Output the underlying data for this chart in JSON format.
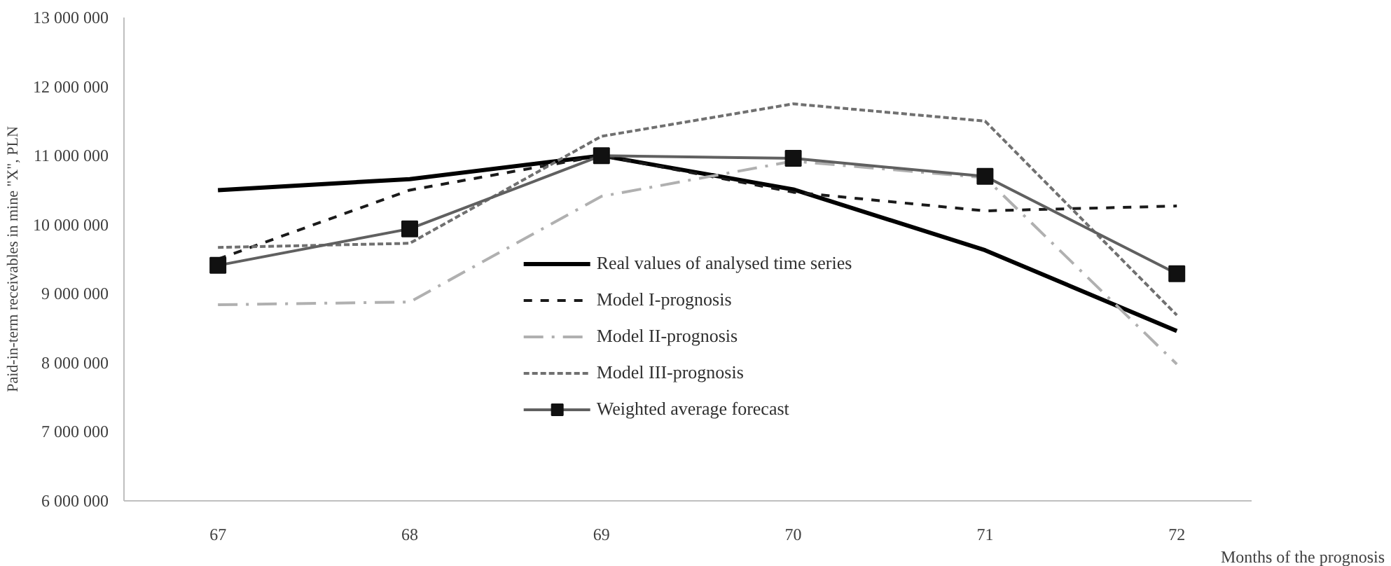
{
  "chart_data": {
    "type": "line",
    "xlabel": "Months of the prognosis",
    "ylabel": "Paid-in-term receivables in mine \"X\", PLN",
    "categories": [
      "67",
      "68",
      "69",
      "70",
      "71",
      "72"
    ],
    "ylim": [
      6000000,
      13000000
    ],
    "yticks": [
      {
        "value": 6000000,
        "label": "6 000 000"
      },
      {
        "value": 7000000,
        "label": "7 000 000"
      },
      {
        "value": 8000000,
        "label": "8 000 000"
      },
      {
        "value": 9000000,
        "label": "9 000 000"
      },
      {
        "value": 10000000,
        "label": "10 000 000"
      },
      {
        "value": 11000000,
        "label": "11 000 000"
      },
      {
        "value": 12000000,
        "label": "12 000 000"
      },
      {
        "value": 13000000,
        "label": "13 000 000"
      }
    ],
    "grid": false,
    "legend": "bottom",
    "series": [
      {
        "name": "Real values of analysed time series",
        "color": "#000000",
        "line_style": "solid",
        "marker": "none",
        "values": [
          10500000,
          10660000,
          11000000,
          10510000,
          9630000,
          8460000
        ]
      },
      {
        "name": "Model I-prognosis",
        "color": "#1a1a1a",
        "line_style": "dashed",
        "marker": "none",
        "values": [
          9500000,
          10500000,
          11000000,
          10470000,
          10200000,
          10270000
        ]
      },
      {
        "name": "Model II-prognosis",
        "color": "#b0b0b0",
        "line_style": "dashdot",
        "marker": "none",
        "values": [
          8840000,
          8880000,
          10410000,
          10920000,
          10680000,
          7980000
        ]
      },
      {
        "name": "Model III-prognosis",
        "color": "#707070",
        "line_style": "dotted",
        "marker": "none",
        "values": [
          9670000,
          9730000,
          11280000,
          11750000,
          11500000,
          8690000
        ]
      },
      {
        "name": "Weighted average forecast",
        "color": "#606060",
        "line_style": "solid",
        "marker": "square",
        "values": [
          9410000,
          9940000,
          11000000,
          10960000,
          10700000,
          9290000
        ]
      }
    ]
  }
}
